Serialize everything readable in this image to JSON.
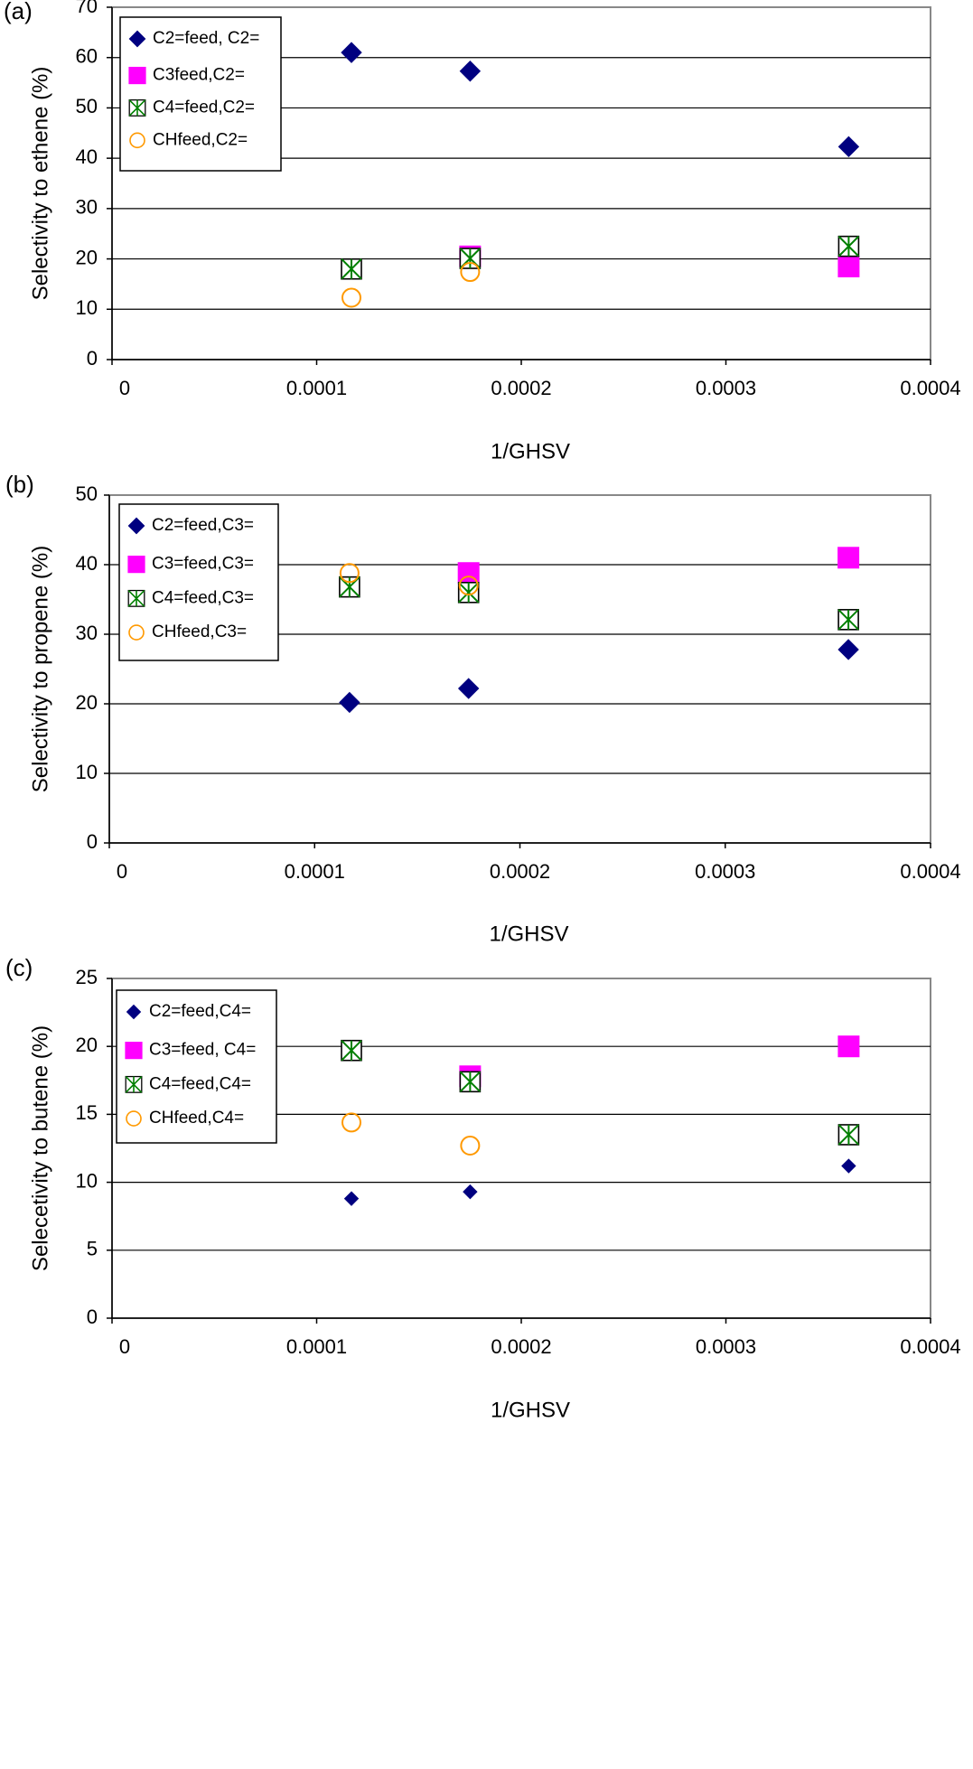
{
  "chart_data": [
    {
      "type": "scatter",
      "panel": "(a)",
      "title": "",
      "xlabel": "1/GHSV",
      "ylabel": "Selectivity to ethene (%)",
      "xlim": [
        0,
        0.0004
      ],
      "ylim": [
        0,
        70
      ],
      "xticks": [
        "0",
        "0.0001",
        "0.0002",
        "0.0003",
        "0.0004"
      ],
      "yticks": [
        "0",
        "10",
        "20",
        "30",
        "40",
        "50",
        "60",
        "70"
      ],
      "grid": "horizontal",
      "legend_position": "top-left",
      "x": [
        0.000117,
        0.000175,
        0.00036
      ],
      "series": [
        {
          "name": "C2=feed, C2=",
          "marker": "diamond",
          "color": "#000080",
          "values": [
            61,
            57.3,
            42.3
          ]
        },
        {
          "name": "C3feed,C2=",
          "marker": "square",
          "color": "#ff00ff",
          "values": [
            null,
            20.5,
            18.5
          ]
        },
        {
          "name": "C4=feed,C2=",
          "marker": "boxed-star",
          "color": "#008000",
          "values": [
            18,
            20.1,
            22.5
          ]
        },
        {
          "name": "CHfeed,C2=",
          "marker": "circle",
          "color": "#ff9900",
          "values": [
            12.3,
            17.4,
            null
          ]
        }
      ]
    },
    {
      "type": "scatter",
      "panel": "(b)",
      "title": "",
      "xlabel": "1/GHSV",
      "ylabel": "Selectivity to propene (%)",
      "xlim": [
        0,
        0.0004
      ],
      "ylim": [
        0,
        50
      ],
      "xticks": [
        "0",
        "0.0001",
        "0.0002",
        "0.0003",
        "0.0004"
      ],
      "yticks": [
        "0",
        "10",
        "20",
        "30",
        "40",
        "50"
      ],
      "grid": "horizontal",
      "legend_position": "top-left",
      "x": [
        0.000117,
        0.000175,
        0.00036
      ],
      "series": [
        {
          "name": "C2=feed,C3=",
          "marker": "diamond",
          "color": "#000080",
          "values": [
            20.2,
            22.2,
            27.8
          ]
        },
        {
          "name": "C3=feed,C3=",
          "marker": "square",
          "color": "#ff00ff",
          "values": [
            null,
            38.8,
            41
          ]
        },
        {
          "name": "C4=feed,C3=",
          "marker": "boxed-star",
          "color": "#008000",
          "values": [
            36.8,
            36,
            32.1
          ]
        },
        {
          "name": "CHfeed,C3=",
          "marker": "circle",
          "color": "#ff9900",
          "values": [
            38.8,
            37,
            null
          ]
        }
      ]
    },
    {
      "type": "scatter",
      "panel": "(c)",
      "title": "",
      "xlabel": "1/GHSV",
      "ylabel": "Selecetivity to butene (%)",
      "xlim": [
        0,
        0.0004
      ],
      "ylim": [
        0,
        25
      ],
      "xticks": [
        "0",
        "0.0001",
        "0.0002",
        "0.0003",
        "0.0004"
      ],
      "yticks": [
        "0",
        "5",
        "10",
        "15",
        "20",
        "25"
      ],
      "grid": "horizontal",
      "legend_position": "top-left",
      "x": [
        0.000117,
        0.000175,
        0.00036
      ],
      "series": [
        {
          "name": "C2=feed,C4=",
          "marker": "diamond-small",
          "color": "#000080",
          "values": [
            8.8,
            9.3,
            11.2
          ]
        },
        {
          "name": "C3=feed, C4=",
          "marker": "square",
          "color": "#ff00ff",
          "values": [
            null,
            17.8,
            20
          ]
        },
        {
          "name": "C4=feed,C4=",
          "marker": "boxed-star",
          "color": "#008000",
          "values": [
            19.7,
            17.4,
            13.5
          ]
        },
        {
          "name": "CHfeed,C4=",
          "marker": "circle",
          "color": "#ff9900",
          "values": [
            14.4,
            12.7,
            null
          ]
        }
      ]
    }
  ]
}
